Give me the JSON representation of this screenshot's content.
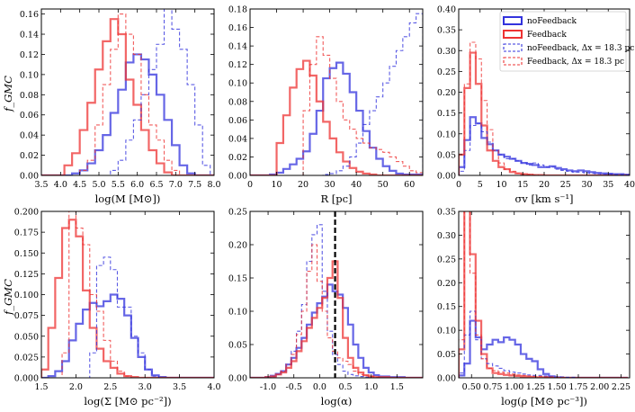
{
  "figure": {
    "ylabel": "f_GMC",
    "colors": {
      "nofb": "#3333dd",
      "fb": "#ee3333",
      "vline": "#000000"
    }
  },
  "legend": {
    "entries": [
      {
        "key": "nofb",
        "dashed": false,
        "label": "noFeedback"
      },
      {
        "key": "fb",
        "dashed": false,
        "label": "Feedback"
      },
      {
        "key": "nofb",
        "dashed": true,
        "label": "noFeedback, Δx = 18.3 pc"
      },
      {
        "key": "fb",
        "dashed": true,
        "label": "Feedback, Δx = 18.3 pc"
      }
    ]
  },
  "chart_data": [
    {
      "type": "histogram",
      "panel": "mass",
      "xlabel": "log(M [M⊙])",
      "xlim": [
        3.5,
        8.0
      ],
      "ylim": [
        0,
        0.165
      ],
      "xticks": [
        3.5,
        4.0,
        4.5,
        5.0,
        5.5,
        6.0,
        6.5,
        7.0,
        7.5,
        8.0
      ],
      "yticks": [
        0.0,
        0.02,
        0.04,
        0.06,
        0.08,
        0.1,
        0.12,
        0.14,
        0.16
      ],
      "bin_start": 3.5,
      "bin_width": 0.2,
      "series": [
        {
          "name": "noFeedback",
          "color": "nofb",
          "dashed": false,
          "values": [
            0,
            0,
            0,
            0,
            0.002,
            0.005,
            0.012,
            0.025,
            0.04,
            0.062,
            0.085,
            0.112,
            0.12,
            0.115,
            0.1,
            0.08,
            0.055,
            0.03,
            0.01,
            0.002,
            0,
            0,
            0
          ]
        },
        {
          "name": "Feedback",
          "color": "fb",
          "dashed": false,
          "values": [
            0,
            0,
            0,
            0.01,
            0.022,
            0.045,
            0.072,
            0.105,
            0.133,
            0.155,
            0.14,
            0.095,
            0.07,
            0.045,
            0.025,
            0.012,
            0.003,
            0,
            0,
            0,
            0,
            0,
            0
          ]
        },
        {
          "name": "noFeedback, Δx = 18.3 pc",
          "color": "nofb",
          "dashed": true,
          "values": [
            0,
            0,
            0,
            0,
            0,
            0,
            0,
            0,
            0,
            0.005,
            0.015,
            0.035,
            0.055,
            0.08,
            0.105,
            0.13,
            0.165,
            0.145,
            0.125,
            0.09,
            0.05,
            0.01,
            0
          ]
        },
        {
          "name": "Feedback, Δx = 18.3 pc",
          "color": "fb",
          "dashed": true,
          "values": [
            0,
            0,
            0,
            0,
            0,
            0.005,
            0.015,
            0.05,
            0.09,
            0.125,
            0.16,
            0.14,
            0.12,
            0.08,
            0.05,
            0.035,
            0.015,
            0.005,
            0,
            0,
            0,
            0,
            0
          ]
        }
      ]
    },
    {
      "type": "histogram",
      "panel": "radius",
      "xlabel": "R [pc]",
      "xlim": [
        0,
        65
      ],
      "ylim": [
        0,
        0.18
      ],
      "xticks": [
        0,
        10,
        20,
        30,
        40,
        50,
        60
      ],
      "yticks": [
        0.0,
        0.02,
        0.04,
        0.06,
        0.08,
        0.1,
        0.12,
        0.14,
        0.16,
        0.18
      ],
      "bin_start": 0,
      "bin_width": 2.5,
      "series": [
        {
          "name": "noFeedback",
          "color": "nofb",
          "dashed": false,
          "values": [
            0,
            0,
            0,
            0.001,
            0.003,
            0.007,
            0.012,
            0.018,
            0.026,
            0.045,
            0.07,
            0.105,
            0.116,
            0.122,
            0.11,
            0.09,
            0.07,
            0.048,
            0.03,
            0.018,
            0.01,
            0.005,
            0.002,
            0.001,
            0.001,
            0.001
          ]
        },
        {
          "name": "Feedback",
          "color": "fb",
          "dashed": false,
          "values": [
            0,
            0,
            0,
            0,
            0.035,
            0.065,
            0.095,
            0.115,
            0.124,
            0.108,
            0.08,
            0.058,
            0.04,
            0.025,
            0.015,
            0.008,
            0.004,
            0.002,
            0.001,
            0,
            0,
            0,
            0,
            0,
            0,
            0
          ]
        },
        {
          "name": "noFeedback, Δx = 18.3 pc",
          "color": "nofb",
          "dashed": true,
          "values": [
            0,
            0,
            0,
            0,
            0,
            0,
            0,
            0,
            0,
            0,
            0,
            0.001,
            0.002,
            0.005,
            0.01,
            0.02,
            0.035,
            0.055,
            0.07,
            0.085,
            0.1,
            0.118,
            0.135,
            0.15,
            0.165,
            0.175
          ]
        },
        {
          "name": "Feedback, Δx = 18.3 pc",
          "color": "fb",
          "dashed": true,
          "values": [
            0,
            0,
            0,
            0,
            0,
            0,
            0,
            0,
            0.07,
            0.12,
            0.15,
            0.13,
            0.105,
            0.08,
            0.06,
            0.05,
            0.04,
            0.035,
            0.03,
            0.028,
            0.025,
            0.02,
            0.015,
            0.01,
            0.005,
            0.003
          ]
        }
      ]
    },
    {
      "type": "histogram",
      "panel": "sigma_v",
      "xlabel": "σv [km s⁻¹]",
      "xlim": [
        0,
        40
      ],
      "ylim": [
        0,
        0.4
      ],
      "xticks": [
        0,
        5,
        10,
        15,
        20,
        25,
        30,
        35,
        40
      ],
      "yticks": [
        0.0,
        0.05,
        0.1,
        0.15,
        0.2,
        0.25,
        0.3,
        0.35,
        0.4
      ],
      "bin_start": 0,
      "bin_width": 1.33,
      "series": [
        {
          "name": "noFeedback",
          "color": "nofb",
          "dashed": false,
          "values": [
            0.02,
            0.085,
            0.14,
            0.125,
            0.09,
            0.075,
            0.06,
            0.05,
            0.045,
            0.04,
            0.035,
            0.03,
            0.028,
            0.025,
            0.02,
            0.02,
            0.022,
            0.018,
            0.015,
            0.012,
            0.01,
            0.012,
            0.01,
            0.008,
            0.006,
            0.005,
            0.004,
            0.003,
            0.003,
            0.002
          ]
        },
        {
          "name": "Feedback",
          "color": "fb",
          "dashed": false,
          "values": [
            0.05,
            0.21,
            0.295,
            0.22,
            0.12,
            0.06,
            0.035,
            0.02,
            0.015,
            0.008,
            0.005,
            0.003,
            0.002,
            0.001,
            0.001,
            0,
            0,
            0,
            0,
            0,
            0,
            0,
            0,
            0,
            0,
            0,
            0,
            0,
            0,
            0
          ]
        },
        {
          "name": "noFeedback, Δx = 18.3 pc",
          "color": "nofb",
          "dashed": true,
          "values": [
            0.01,
            0.06,
            0.12,
            0.125,
            0.105,
            0.08,
            0.06,
            0.05,
            0.04,
            0.04,
            0.035,
            0.03,
            0.025,
            0.03,
            0.025,
            0.02,
            0.02,
            0.015,
            0.012,
            0.01,
            0.008,
            0.008,
            0.006,
            0.005,
            0.004,
            0.003,
            0.003,
            0.002,
            0.002,
            0.001
          ]
        },
        {
          "name": "Feedback, Δx = 18.3 pc",
          "color": "fb",
          "dashed": true,
          "values": [
            0.05,
            0.22,
            0.32,
            0.28,
            0.18,
            0.11,
            0.06,
            0.03,
            0.015,
            0.01,
            0.005,
            0.003,
            0.002,
            0.001,
            0,
            0,
            0,
            0,
            0,
            0,
            0,
            0,
            0,
            0,
            0,
            0,
            0,
            0,
            0,
            0
          ]
        }
      ]
    },
    {
      "type": "histogram",
      "panel": "surface_density",
      "xlabel": "log(Σ [M⊙ pc⁻²])",
      "xlim": [
        1.5,
        4.0
      ],
      "ylim": [
        0,
        0.2
      ],
      "xticks": [
        1.5,
        2.0,
        2.5,
        3.0,
        3.5,
        4.0
      ],
      "yticks": [
        0.0,
        0.025,
        0.05,
        0.075,
        0.1,
        0.125,
        0.15,
        0.175,
        0.2
      ],
      "bin_start": 1.5,
      "bin_width": 0.1,
      "series": [
        {
          "name": "noFeedback",
          "color": "nofb",
          "dashed": false,
          "values": [
            0,
            0.002,
            0.008,
            0.02,
            0.045,
            0.065,
            0.082,
            0.09,
            0.086,
            0.092,
            0.1,
            0.095,
            0.075,
            0.048,
            0.025,
            0.01,
            0.003,
            0.001,
            0,
            0,
            0,
            0,
            0,
            0,
            0
          ]
        },
        {
          "name": "Feedback",
          "color": "fb",
          "dashed": false,
          "values": [
            0.01,
            0.06,
            0.12,
            0.18,
            0.19,
            0.17,
            0.105,
            0.06,
            0.035,
            0.02,
            0.012,
            0.005,
            0.002,
            0.001,
            0,
            0,
            0,
            0,
            0,
            0,
            0,
            0,
            0,
            0,
            0
          ]
        },
        {
          "name": "noFeedback, Δx = 18.3 pc",
          "color": "nofb",
          "dashed": true,
          "values": [
            0,
            0,
            0,
            0,
            0,
            0,
            0,
            0.03,
            0.135,
            0.145,
            0.13,
            0.085,
            0.085,
            0.05,
            0.03,
            0.01,
            0.002,
            0,
            0,
            0,
            0,
            0,
            0,
            0,
            0
          ]
        },
        {
          "name": "Feedback, Δx = 18.3 pc",
          "color": "fb",
          "dashed": true,
          "values": [
            0,
            0,
            0,
            0.03,
            0.2,
            0.18,
            0.16,
            0.1,
            0.08,
            0.045,
            0.02,
            0.008,
            0.002,
            0,
            0,
            0,
            0,
            0,
            0,
            0,
            0,
            0,
            0,
            0,
            0
          ]
        }
      ]
    },
    {
      "type": "histogram",
      "panel": "virial_parameter",
      "xlabel": "log(α)",
      "xlim": [
        -1.35,
        2.0
      ],
      "ylim": [
        0,
        0.25
      ],
      "xticks": [
        -1.0,
        -0.5,
        0.0,
        0.5,
        1.0,
        1.5
      ],
      "yticks": [
        0.0,
        0.05,
        0.1,
        0.15,
        0.2,
        0.25
      ],
      "bin_start": -1.35,
      "bin_width": 0.1,
      "vline": 0.3,
      "series": [
        {
          "name": "noFeedback",
          "color": "nofb",
          "dashed": false,
          "values": [
            0,
            0,
            0,
            0.001,
            0.003,
            0.006,
            0.01,
            0.02,
            0.03,
            0.045,
            0.06,
            0.08,
            0.098,
            0.112,
            0.122,
            0.14,
            0.13,
            0.125,
            0.105,
            0.08,
            0.05,
            0.03,
            0.015,
            0.008,
            0.004,
            0.002,
            0.002,
            0.001,
            0.001,
            0.001,
            0,
            0,
            0,
            0
          ]
        },
        {
          "name": "Feedback",
          "color": "fb",
          "dashed": false,
          "values": [
            0,
            0,
            0,
            0.001,
            0.002,
            0.005,
            0.008,
            0.015,
            0.025,
            0.04,
            0.055,
            0.075,
            0.09,
            0.105,
            0.12,
            0.15,
            0.175,
            0.12,
            0.06,
            0.03,
            0.015,
            0.008,
            0.004,
            0.002,
            0.001,
            0.001,
            0.001,
            0,
            0,
            0,
            0,
            0,
            0,
            0
          ]
        },
        {
          "name": "noFeedback, Δx = 18.3 pc",
          "color": "nofb",
          "dashed": true,
          "values": [
            0,
            0,
            0,
            0,
            0.002,
            0.005,
            0.01,
            0.02,
            0.04,
            0.07,
            0.11,
            0.175,
            0.215,
            0.23,
            0.13,
            0.07,
            0.035,
            0.02,
            0.01,
            0.005,
            0.003,
            0.002,
            0.001,
            0,
            0,
            0,
            0,
            0,
            0,
            0,
            0,
            0,
            0,
            0
          ]
        },
        {
          "name": "Feedback, Δx = 18.3 pc",
          "color": "fb",
          "dashed": true,
          "values": [
            0,
            0,
            0,
            0,
            0.002,
            0.005,
            0.01,
            0.02,
            0.035,
            0.065,
            0.1,
            0.16,
            0.2,
            0.145,
            0.1,
            0.06,
            0.04,
            0.03,
            0.025,
            0.02,
            0.01,
            0.005,
            0.003,
            0.002,
            0.001,
            0,
            0,
            0,
            0,
            0,
            0,
            0,
            0,
            0
          ]
        }
      ]
    },
    {
      "type": "histogram",
      "panel": "volume_density",
      "xlabel": "log(ρ [M⊙ pc⁻³])",
      "xlim": [
        0.35,
        2.35
      ],
      "ylim": [
        0,
        0.35
      ],
      "xticks": [
        0.5,
        0.75,
        1.0,
        1.25,
        1.5,
        1.75,
        2.0,
        2.25
      ],
      "xticklabels": [
        "0.50",
        "0.75",
        "1.00",
        "1.25",
        "1.50",
        "1.75",
        "2.00",
        "2.25"
      ],
      "yticks": [
        0.0,
        0.05,
        0.1,
        0.15,
        0.2,
        0.25,
        0.3,
        0.35
      ],
      "bin_start": 0.35,
      "bin_width": 0.066,
      "series": [
        {
          "name": "noFeedback",
          "color": "nofb",
          "dashed": false,
          "values": [
            0.005,
            0.03,
            0.12,
            0.085,
            0.06,
            0.07,
            0.08,
            0.075,
            0.085,
            0.08,
            0.07,
            0.05,
            0.04,
            0.035,
            0.018,
            0.008,
            0.003,
            0.001,
            0,
            0,
            0,
            0,
            0,
            0,
            0,
            0,
            0,
            0,
            0,
            0
          ]
        },
        {
          "name": "Feedback",
          "color": "fb",
          "dashed": false,
          "values": [
            0.06,
            0.36,
            0.26,
            0.12,
            0.05,
            0.02,
            0.01,
            0.008,
            0.006,
            0.005,
            0.004,
            0.003,
            0.002,
            0.001,
            0.001,
            0.001,
            0,
            0,
            0,
            0,
            0,
            0,
            0,
            0,
            0,
            0,
            0,
            0,
            0,
            0
          ]
        },
        {
          "name": "noFeedback, Δx = 18.3 pc",
          "color": "nofb",
          "dashed": true,
          "values": [
            0.01,
            0.09,
            0.14,
            0.08,
            0.04,
            0.03,
            0.025,
            0.02,
            0.015,
            0.012,
            0.01,
            0.008,
            0.006,
            0.005,
            0.005,
            0.004,
            0.003,
            0.002,
            0.002,
            0.001,
            0.001,
            0,
            0,
            0,
            0,
            0,
            0,
            0,
            0,
            0
          ]
        },
        {
          "name": "Feedback, Δx = 18.3 pc",
          "color": "fb",
          "dashed": true,
          "values": [
            0.08,
            0.36,
            0.22,
            0.09,
            0.04,
            0.02,
            0.015,
            0.012,
            0.01,
            0.008,
            0.006,
            0.005,
            0.004,
            0.003,
            0.003,
            0.002,
            0.002,
            0.001,
            0.001,
            0,
            0,
            0,
            0,
            0,
            0,
            0,
            0,
            0,
            0,
            0
          ]
        }
      ]
    }
  ]
}
